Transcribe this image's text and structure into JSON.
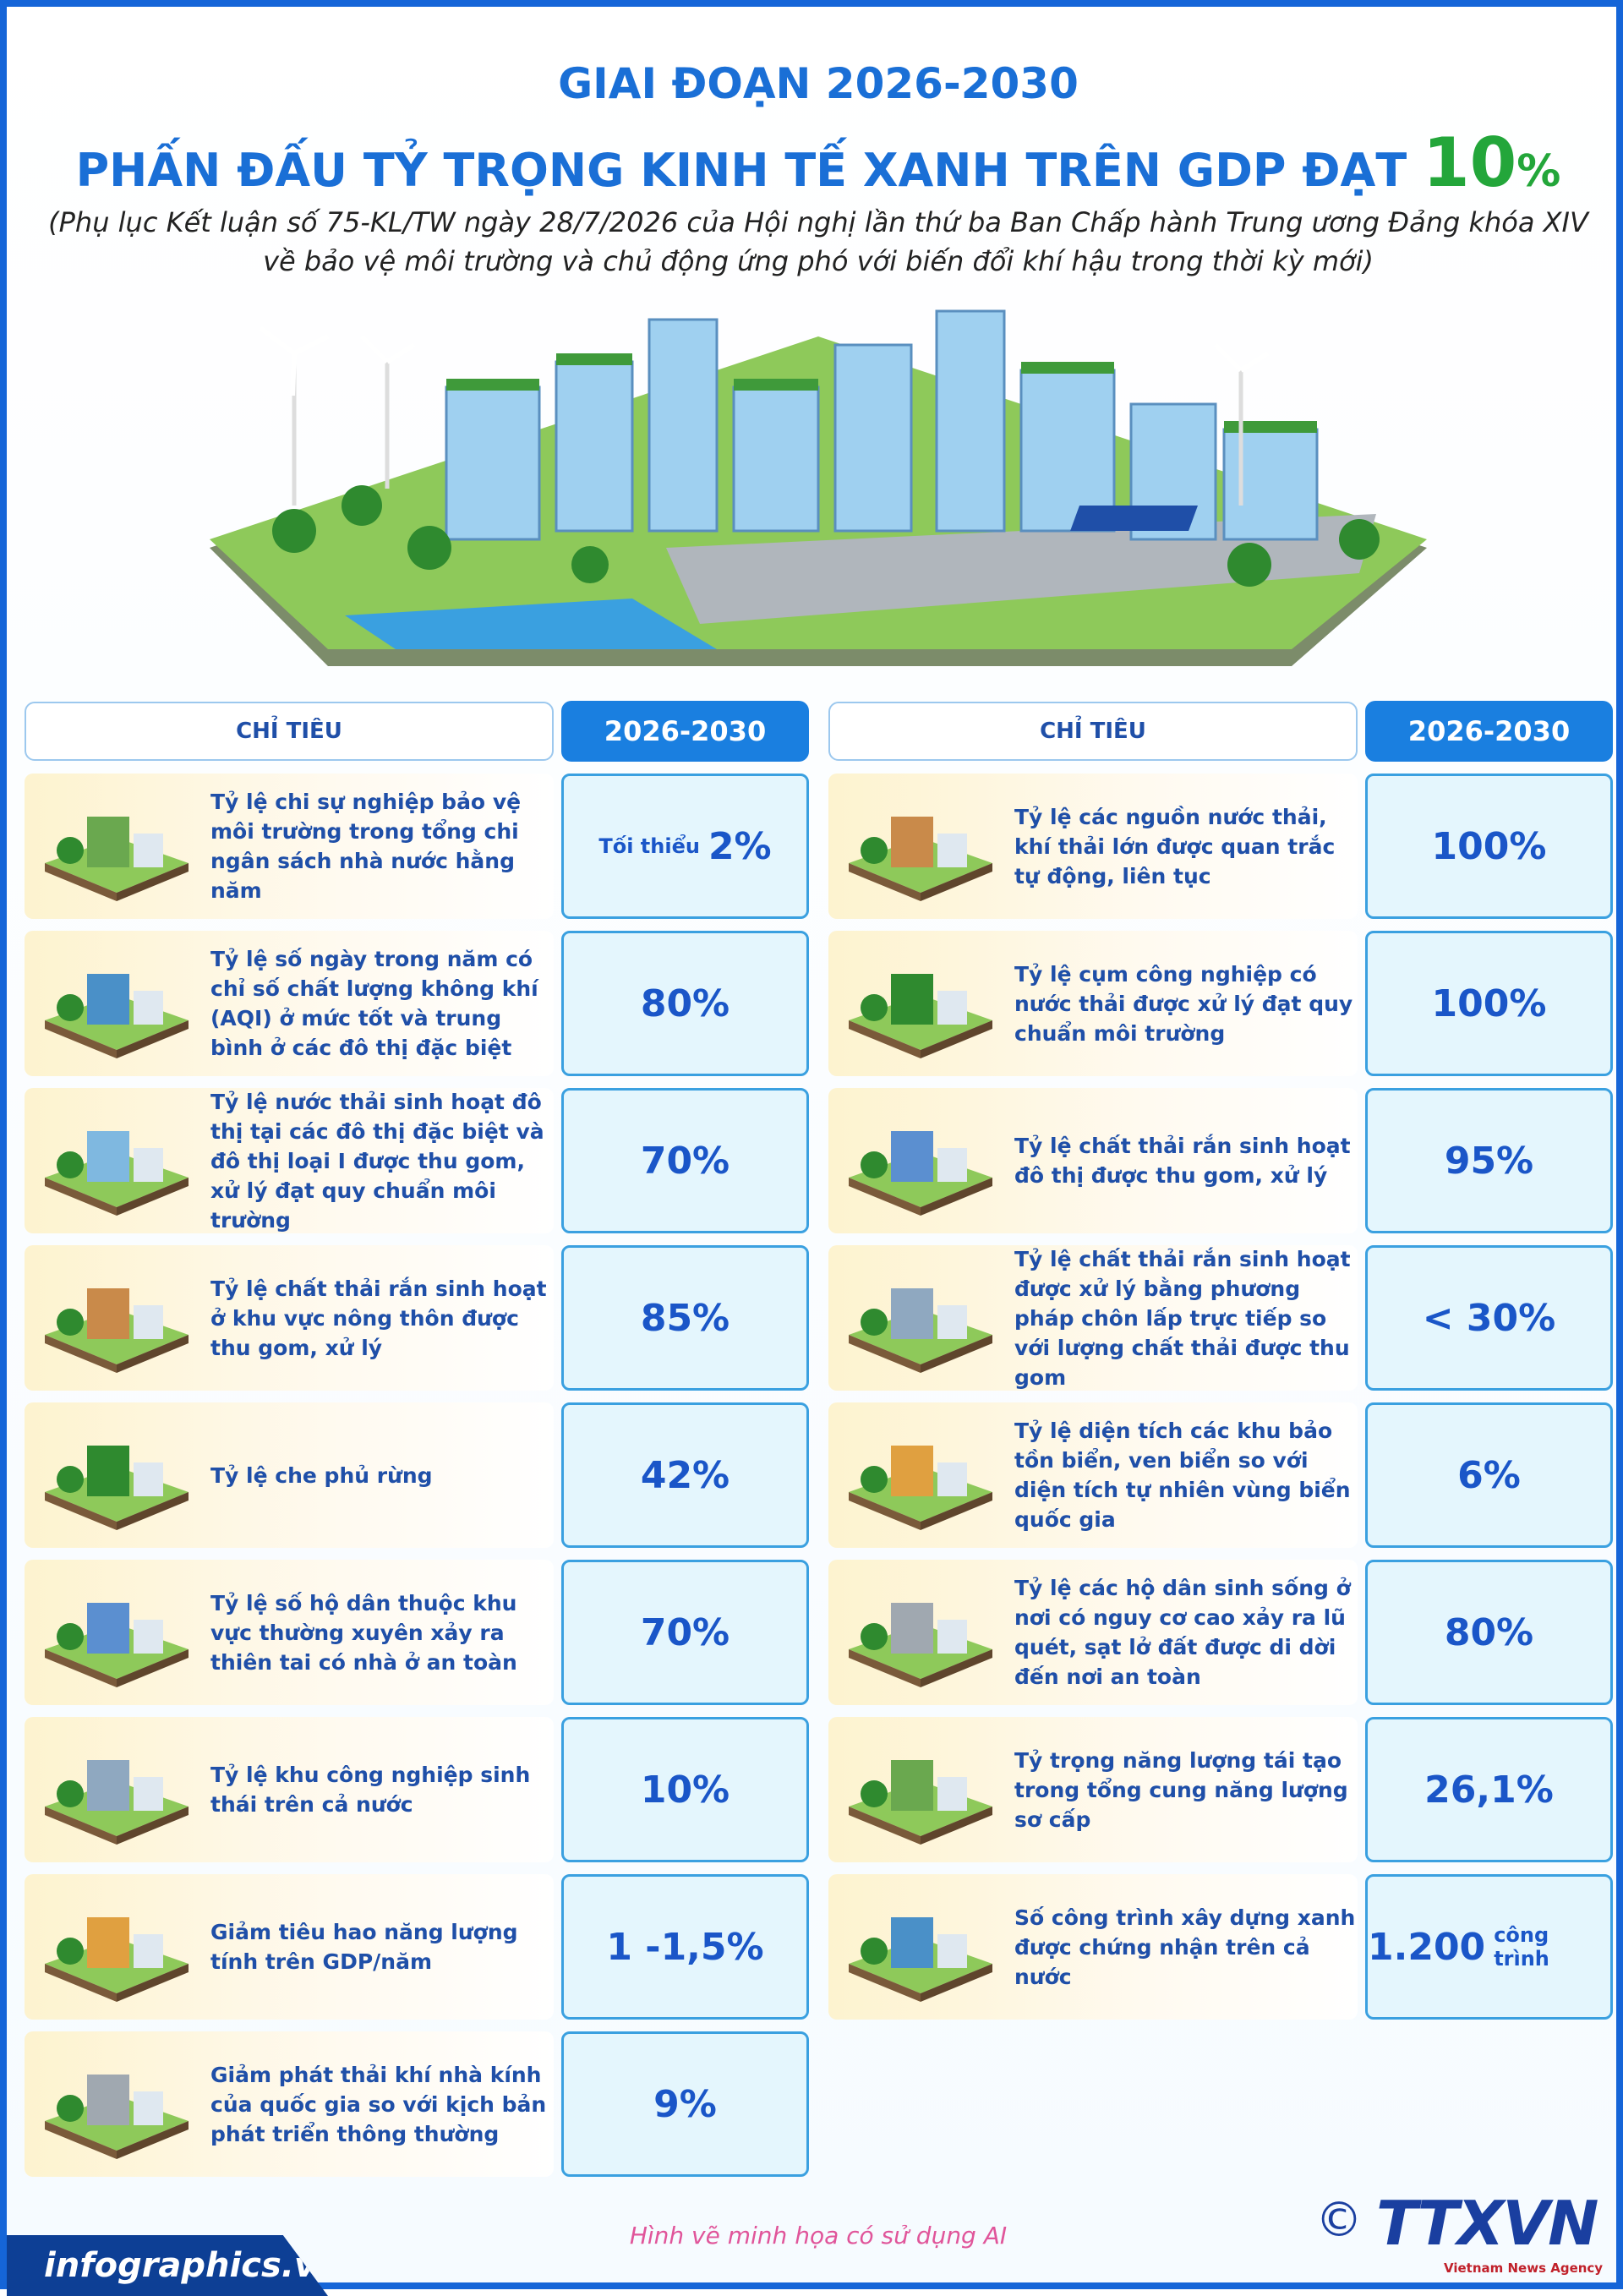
{
  "header": {
    "title_line1": "GIAI ĐOẠN 2026-2030",
    "title_line2": {
      "text": "PHẤN ĐẤU TỶ TRỌNG KINH TẾ XANH TRÊN GDP ĐẠT",
      "highlight": "10",
      "unit": "%"
    },
    "subtitle_line1": "(Phụ lục Kết luận số 75-KL/TW ngày 28/7/2026 của Hội nghị lần thứ ba Ban Chấp hành Trung ương Đảng khóa XIV",
    "subtitle_line2": "về bảo vệ môi trường và chủ động ứng phó với biến đổi khí hậu trong thời kỳ mới)"
  },
  "tables": [
    {
      "header": {
        "indicator": "CHỈ TIÊU",
        "period": "2026-2030"
      },
      "rows": [
        {
          "label": "Tỷ lệ chi sự nghiệp bảo vệ môi trường trong tổng chi ngân sách nhà nước hằng năm",
          "value": {
            "prefix": "Tối thiểu",
            "value": "2%"
          }
        },
        {
          "label": "Tỷ lệ số ngày trong năm có chỉ số chất lượng không khí (AQI) ở mức tốt và trung bình ở các đô thị đặc biệt",
          "value": {
            "value": "80%"
          }
        },
        {
          "label": "Tỷ lệ nước thải sinh hoạt đô thị tại các đô thị đặc biệt và đô thị loại I được thu gom, xử lý đạt quy chuẩn môi trường",
          "value": {
            "value": "70%"
          }
        },
        {
          "label": "Tỷ lệ chất thải rắn sinh hoạt ở khu vực nông thôn được thu gom, xử lý",
          "value": {
            "value": "85%"
          }
        },
        {
          "label": "Tỷ lệ che phủ rừng",
          "value": {
            "value": "42%"
          }
        },
        {
          "label": "Tỷ lệ số hộ dân thuộc khu vực thường xuyên xảy ra thiên tai có nhà ở an toàn",
          "value": {
            "value": "70%"
          }
        },
        {
          "label": "Tỷ lệ khu công nghiệp sinh thái trên cả nước",
          "value": {
            "value": "10%"
          }
        },
        {
          "label": "Giảm tiêu hao năng lượng tính trên GDP/năm",
          "value": {
            "value": "1 -1,5%"
          }
        },
        {
          "label": "Giảm phát thải khí nhà kính của quốc gia so với kịch bản phát triển thông thường",
          "value": {
            "value": "9%"
          }
        }
      ]
    },
    {
      "header": {
        "indicator": "CHỈ TIÊU",
        "period": "2026-2030"
      },
      "rows": [
        {
          "label": "Tỷ lệ các nguồn nước thải, khí thải lớn được quan trắc tự động, liên tục",
          "value": {
            "value": "100%"
          }
        },
        {
          "label": "Tỷ lệ cụm công nghiệp có nước thải được xử lý đạt quy chuẩn môi trường",
          "value": {
            "value": "100%"
          }
        },
        {
          "label": "Tỷ lệ chất thải rắn sinh hoạt đô thị được thu gom, xử lý",
          "value": {
            "value": "95%"
          }
        },
        {
          "label": "Tỷ lệ chất thải rắn sinh hoạt được xử lý bằng phương pháp chôn lấp trực tiếp so với lượng chất thải được thu gom",
          "value": {
            "value": "< 30%"
          }
        },
        {
          "label": "Tỷ lệ diện tích các khu bảo tồn biển, ven biển so với diện tích tự nhiên vùng biển quốc gia",
          "value": {
            "value": "6%"
          }
        },
        {
          "label": "Tỷ lệ các hộ dân sinh sống ở nơi có nguy cơ cao xảy ra lũ quét, sạt lở đất được di dời đến nơi an toàn",
          "value": {
            "value": "80%"
          }
        },
        {
          "label": "Tỷ trọng năng lượng tái tạo trong tổng cung năng lượng sơ cấp",
          "value": {
            "value": "26,1%"
          }
        },
        {
          "label": "Số công trình xây dựng xanh được chứng nhận trên cả nước",
          "value": {
            "value": "1.200",
            "suffix": "công trình"
          }
        }
      ]
    }
  ],
  "footer": {
    "site": "infographics.vn",
    "note": "Hình vẽ minh họa có sử dụng AI",
    "copyright": "©",
    "logo": "TTXVN",
    "agency": "Vietnam News Agency"
  }
}
